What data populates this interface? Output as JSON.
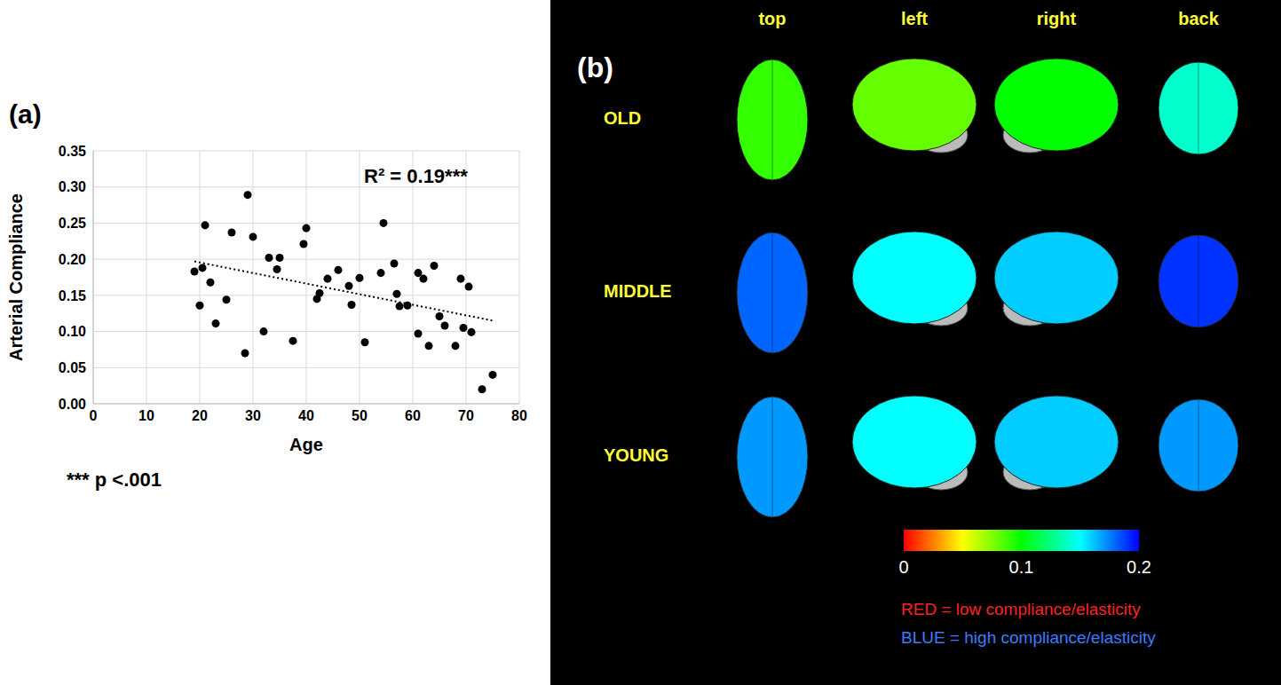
{
  "chart_data": {
    "type": "scatter",
    "panel_label": "(a)",
    "x_label": "Age",
    "y_label": "Arterial Compliance",
    "x": [
      19,
      20,
      20.5,
      21,
      22,
      23,
      25,
      26,
      28.5,
      29,
      30,
      32,
      33,
      34.5,
      35,
      37.5,
      39.5,
      40,
      42,
      42.5,
      44,
      46,
      48,
      48.5,
      50,
      51,
      54,
      54.5,
      56.5,
      57,
      57.5,
      59,
      61,
      61,
      62,
      63,
      64,
      65,
      66,
      68,
      69,
      69.5,
      70.5,
      71,
      73,
      75
    ],
    "values": [
      0.183,
      0.136,
      0.188,
      0.247,
      0.168,
      0.111,
      0.144,
      0.237,
      0.07,
      0.289,
      0.231,
      0.1,
      0.202,
      0.186,
      0.202,
      0.087,
      0.221,
      0.243,
      0.145,
      0.153,
      0.173,
      0.185,
      0.163,
      0.137,
      0.174,
      0.085,
      0.181,
      0.25,
      0.194,
      0.152,
      0.135,
      0.136,
      0.097,
      0.181,
      0.173,
      0.08,
      0.191,
      0.121,
      0.108,
      0.08,
      0.173,
      0.105,
      0.162,
      0.099,
      0.02,
      0.04
    ],
    "color": "#000000",
    "marker": "circle",
    "trendline": {
      "x": [
        19,
        75
      ],
      "values": [
        0.197,
        0.115
      ],
      "line_style": "dotted"
    },
    "xlim": [
      0,
      80
    ],
    "xticks": [
      0,
      10,
      20,
      30,
      40,
      50,
      60,
      70,
      80
    ],
    "ylim": [
      0,
      0.35
    ],
    "yticks": [
      {
        "value": 0,
        "label": "0.00"
      },
      {
        "value": 0.05,
        "label": "0.05"
      },
      {
        "value": 0.1,
        "label": "0.10"
      },
      {
        "value": 0.15,
        "label": "0.15"
      },
      {
        "value": 0.2,
        "label": "0.20"
      },
      {
        "value": 0.25,
        "label": "0.25"
      },
      {
        "value": 0.3,
        "label": "0.30"
      },
      {
        "value": 0.35,
        "label": "0.35"
      }
    ],
    "grid": true,
    "annotation": "R² = 0.19***",
    "note": "*** p <.001"
  },
  "panel_b": {
    "panel_label": "(b)",
    "views": [
      "top",
      "left",
      "right",
      "back"
    ],
    "rows": [
      "OLD",
      "MIDDLE",
      "YOUNG"
    ],
    "mean_compliance": [
      [
        0.09,
        0.08,
        0.1,
        0.14
      ],
      [
        0.18,
        0.15,
        0.16,
        0.19
      ],
      [
        0.17,
        0.15,
        0.16,
        0.17
      ]
    ],
    "colorbar": {
      "range": [
        0,
        0.2
      ],
      "ticks": [
        0,
        0.1,
        0.2
      ]
    },
    "legend_texts": [
      "RED = low compliance/elasticity",
      "BLUE = high compliance/elasticity"
    ]
  }
}
